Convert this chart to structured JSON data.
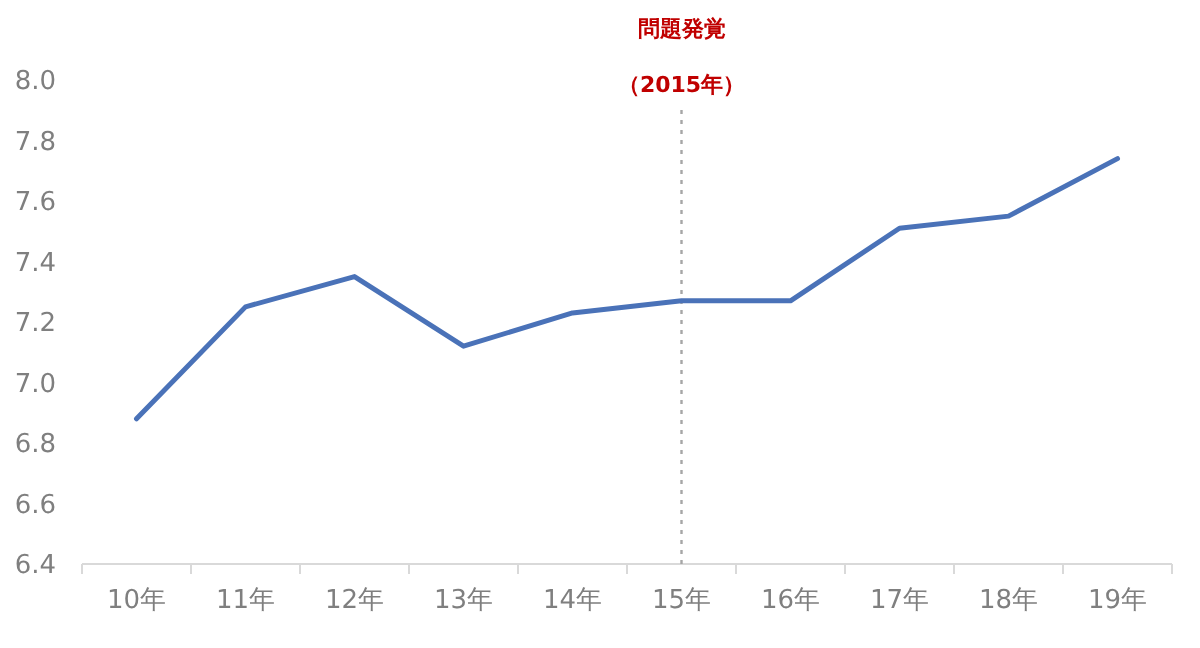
{
  "chart_data": {
    "type": "line",
    "categories": [
      "10年",
      "11年",
      "12年",
      "13年",
      "14年",
      "15年",
      "16年",
      "17年",
      "18年",
      "19年"
    ],
    "series": [
      {
        "color": "#4a72b8",
        "values": [
          6.88,
          7.25,
          7.35,
          7.12,
          7.23,
          7.27,
          7.27,
          7.51,
          7.55,
          7.74
        ]
      }
    ],
    "ylim": [
      6.4,
      8.0
    ],
    "yticks": [
      {
        "value": 6.4,
        "label": "6.4"
      },
      {
        "value": 6.6,
        "label": "6.6"
      },
      {
        "value": 6.8,
        "label": "6.8"
      },
      {
        "value": 7.0,
        "label": "7.0"
      },
      {
        "value": 7.2,
        "label": "7.2"
      },
      {
        "value": 7.4,
        "label": "7.4"
      },
      {
        "value": 7.6,
        "label": "7.6"
      },
      {
        "value": 7.8,
        "label": "7.8"
      },
      {
        "value": 8.0,
        "label": "8.0"
      }
    ],
    "grid": false,
    "marker": "none",
    "line_style": "solid",
    "ref_lines": [
      {
        "axis": "x",
        "value": "15年",
        "label": "（2015年）",
        "color": "#a6a6a6",
        "line_style": "dotted"
      }
    ],
    "annotations": [
      "問題発覚"
    ]
  }
}
